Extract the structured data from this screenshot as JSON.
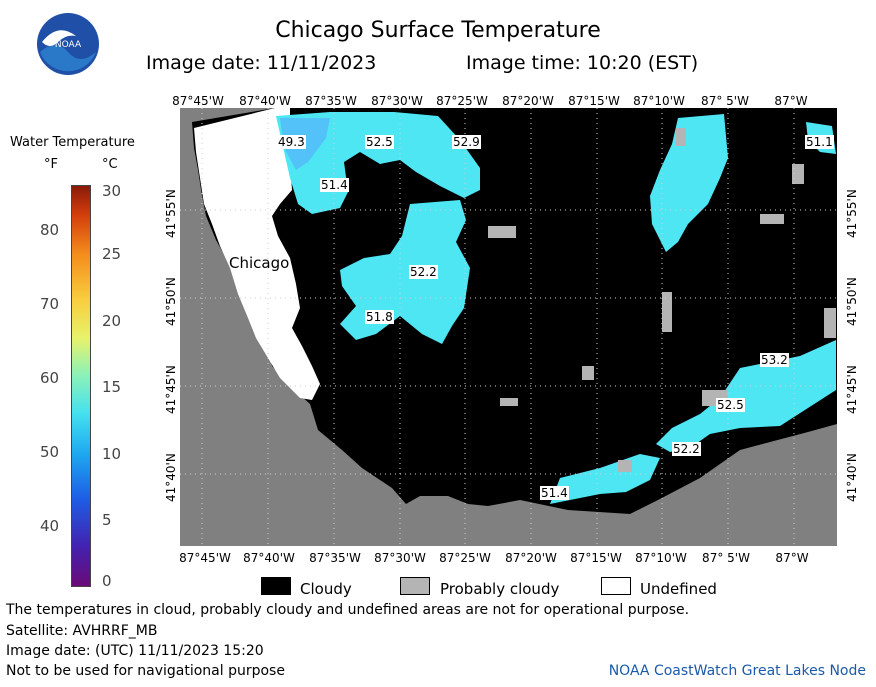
{
  "header": {
    "title": "Chicago Surface Temperature",
    "image_date": "Image date: 11/11/2023",
    "image_time": "Image time: 10:20 (EST)",
    "logo_text": "NOAA"
  },
  "scale": {
    "title": "Water Temperature",
    "unit_f": "°F",
    "unit_c": "°C",
    "fahrenheit_ticks": [
      "80",
      "70",
      "60",
      "50",
      "40"
    ],
    "celsius_ticks": [
      "30",
      "25",
      "20",
      "15",
      "10",
      "5",
      "0"
    ]
  },
  "axes": {
    "longitudes": [
      "87°45'W",
      "87°40'W",
      "87°35'W",
      "87°30'W",
      "87°25'W",
      "87°20'W",
      "87°15'W",
      "87°10'W",
      "87° 5'W",
      "87°W"
    ],
    "latitudes": [
      "41°55'N",
      "41°50'N",
      "41°45'N",
      "41°40'N"
    ]
  },
  "map": {
    "city_label": "Chicago",
    "temperature_labels": [
      "49.3",
      "52.5",
      "52.9",
      "51.1",
      "51.4",
      "52.2",
      "51.8",
      "53.2",
      "52.5",
      "52.2",
      "51.4"
    ],
    "colors": {
      "land": "#808080",
      "cloudy": "#000000",
      "probably_cloudy": "#b4b4b4",
      "undefined": "#ffffff",
      "water_cool": "#4fe6f4",
      "water_cold": "#52c2f8"
    }
  },
  "legend": {
    "cloudy": "Cloudy",
    "probably_cloudy": "Probably cloudy",
    "undefined": "Undefined"
  },
  "footer": {
    "note": "The temperatures in cloud, probably cloudy and undefined areas are not for operational purpose.",
    "satellite": "Satellite: AVHRRF_MB",
    "utc_date": "Image date: (UTC) 11/11/2023  15:20",
    "navigation": "Not to be used for navigational purpose",
    "node": "NOAA CoastWatch Great Lakes Node"
  }
}
